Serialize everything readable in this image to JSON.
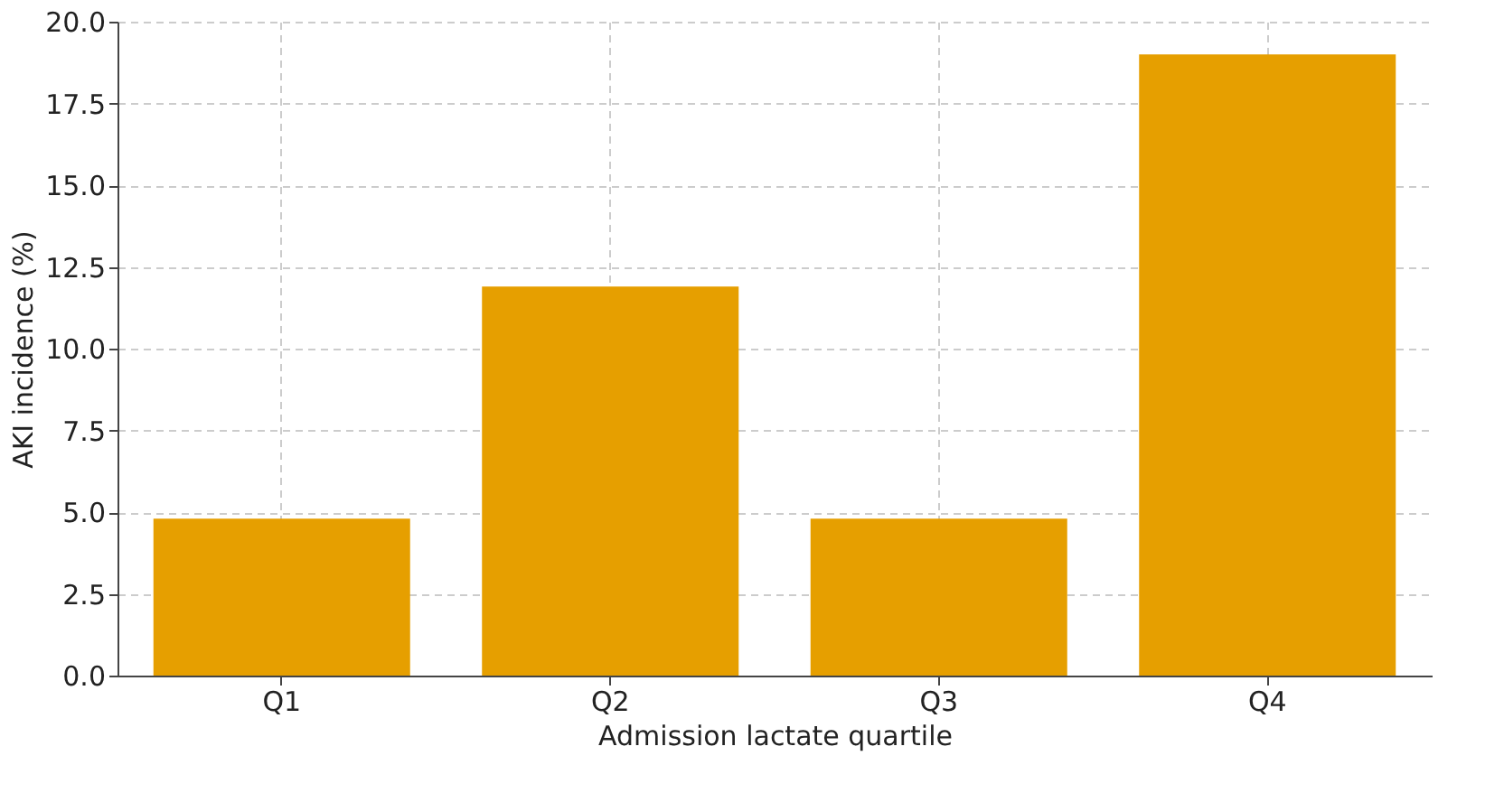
{
  "chart_data": {
    "type": "bar",
    "xlabel": "Admission lactate quartile",
    "ylabel": "AKI incidence (%)",
    "categories": [
      "Q1",
      "Q2",
      "Q3",
      "Q4"
    ],
    "values": [
      4.8,
      11.9,
      4.8,
      19.0
    ],
    "color": "#e69f00",
    "ylim": [
      0,
      20
    ],
    "yticks": [
      {
        "value": 0,
        "label": "0.0"
      },
      2.5,
      {
        "value": 5,
        "label": "5.0"
      },
      7.5,
      {
        "value": 10,
        "label": "10.0"
      },
      12.5,
      {
        "value": 15,
        "label": "15.0"
      },
      17.5,
      {
        "value": 20,
        "label": "20.0"
      }
    ],
    "grid": true
  }
}
